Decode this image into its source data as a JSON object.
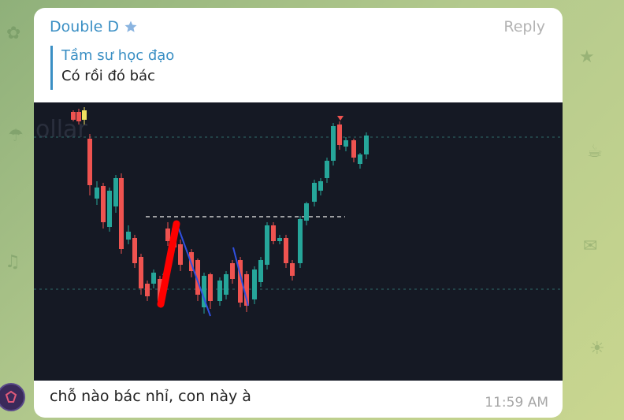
{
  "message": {
    "sender_name": "Double D",
    "reply_label": "Reply",
    "quote": {
      "author": "Tầm sư học đạo",
      "text": "Có rồi đó bác"
    },
    "caption": "chỗ nào bác nhỉ, con này à",
    "time": "11:59 AM"
  },
  "chart": {
    "background": "#151924",
    "up_color": "#26a69a",
    "down_color": "#ef5350",
    "watermark": "ollar"
  },
  "colors": {
    "accent": "#3a8fc4",
    "bubble": "#ffffff",
    "wallpaper": "#b3c98d"
  },
  "icons": {
    "star": "star-icon",
    "avatar": "avatar-icon"
  }
}
